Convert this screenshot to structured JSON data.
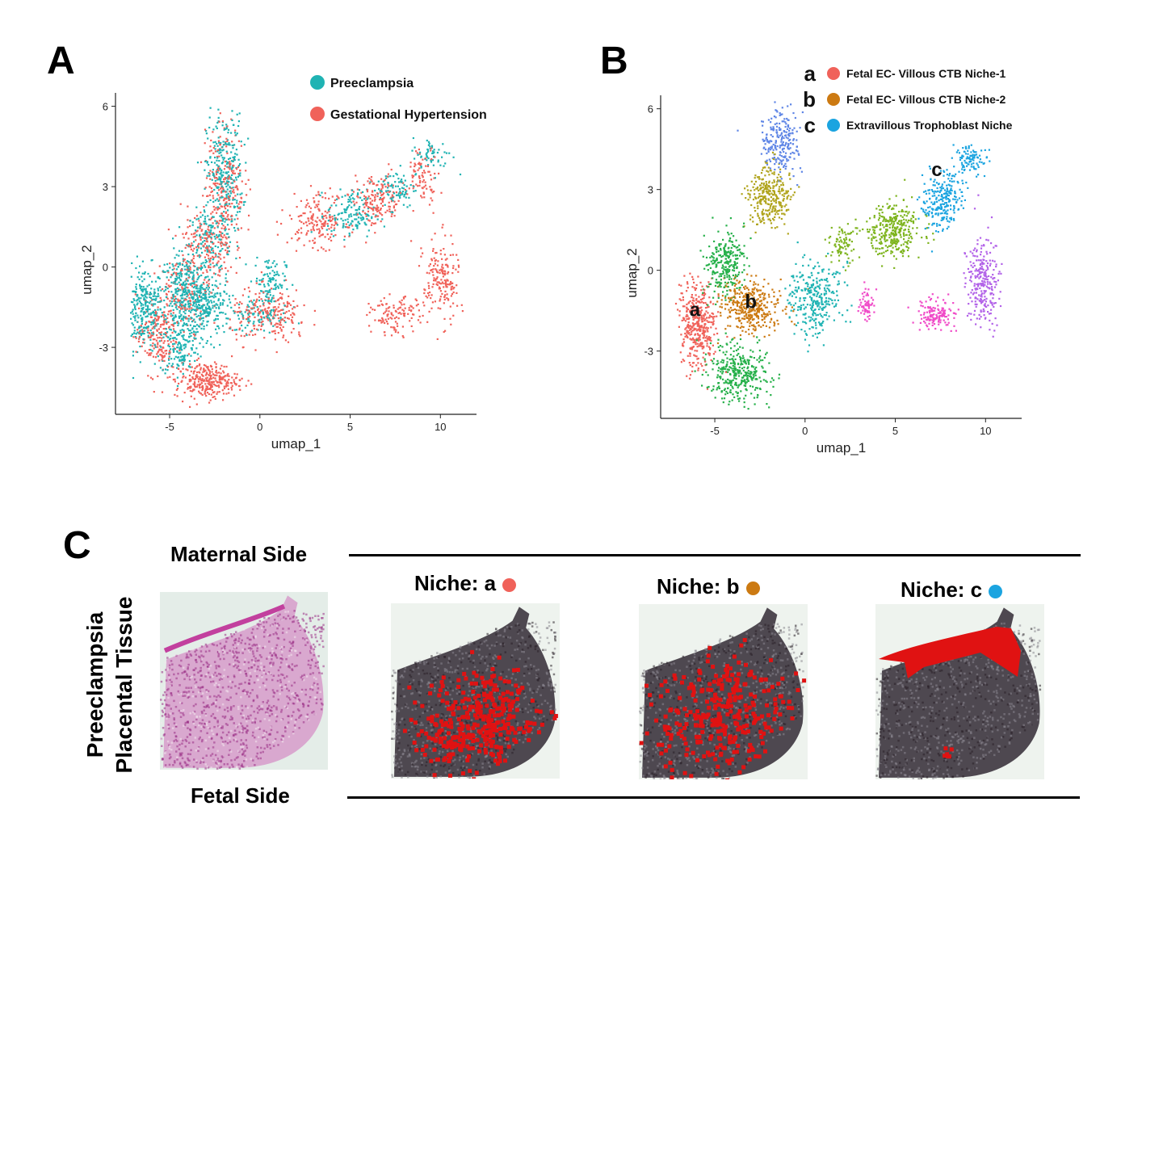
{
  "panels": {
    "a": {
      "letter": "A"
    },
    "b": {
      "letter": "B"
    },
    "c": {
      "letter": "C"
    }
  },
  "chart_data": [
    {
      "type": "scatter",
      "panel": "A",
      "xlabel": "umap_1",
      "ylabel": "umap_2",
      "xlim": [
        -8,
        12
      ],
      "ylim": [
        -5.5,
        6.5
      ],
      "xticks": [
        -5,
        0,
        5,
        10
      ],
      "xtick_labels": [
        "-5",
        "0",
        "5",
        "10"
      ],
      "yticks": [
        -3,
        0,
        3,
        6
      ],
      "ytick_labels": [
        "-3",
        "0",
        "3",
        "6"
      ],
      "grid": false,
      "legend_position": "top-right",
      "series": [
        {
          "name": "Preeclampsia",
          "color": "#1fb3b3",
          "regions": [
            [
              -6.5,
              -1.5,
              1.0,
              1.4
            ],
            [
              -4.2,
              -1.0,
              1.3,
              1.4
            ],
            [
              -4.5,
              -3.0,
              1.0,
              0.9
            ],
            [
              -2.0,
              3.5,
              0.9,
              2.0
            ],
            [
              -2.8,
              1.0,
              1.0,
              1.1
            ],
            [
              -3.0,
              -1.5,
              1.2,
              1.0
            ],
            [
              0.5,
              -0.5,
              0.8,
              0.9
            ],
            [
              5.0,
              2.0,
              1.2,
              0.8
            ],
            [
              7.5,
              3.0,
              1.0,
              0.7
            ],
            [
              9.5,
              4.2,
              1.0,
              0.6
            ],
            [
              0.0,
              -1.8,
              1.4,
              0.6
            ]
          ],
          "weights": [
            140,
            170,
            70,
            140,
            70,
            110,
            55,
            70,
            40,
            30,
            40
          ]
        },
        {
          "name": "Gestational Hypertension",
          "color": "#f0625a",
          "regions": [
            [
              -3.0,
              -4.2,
              1.6,
              0.6
            ],
            [
              -5.8,
              -2.5,
              1.0,
              1.3
            ],
            [
              -2.0,
              3.2,
              1.0,
              1.9
            ],
            [
              -3.0,
              0.8,
              1.3,
              1.3
            ],
            [
              0.5,
              -1.8,
              2.0,
              0.9
            ],
            [
              3.2,
              1.8,
              1.5,
              0.9
            ],
            [
              6.5,
              2.5,
              1.3,
              0.9
            ],
            [
              10.0,
              -0.5,
              0.9,
              1.4
            ],
            [
              7.5,
              -1.8,
              1.3,
              0.6
            ],
            [
              9.0,
              3.5,
              0.8,
              0.9
            ],
            [
              -4.2,
              -1.0,
              1.4,
              1.2
            ]
          ],
          "weights": [
            150,
            90,
            110,
            90,
            110,
            90,
            80,
            90,
            60,
            40,
            70
          ]
        }
      ]
    },
    {
      "type": "scatter",
      "panel": "B",
      "xlabel": "umap_1",
      "ylabel": "umap_2",
      "xlim": [
        -8,
        12
      ],
      "ylim": [
        -5.5,
        6.5
      ],
      "xticks": [
        -5,
        0,
        5,
        10
      ],
      "xtick_labels": [
        "-5",
        "0",
        "5",
        "10"
      ],
      "yticks": [
        -3,
        0,
        3,
        6
      ],
      "ytick_labels": [
        "-3",
        "0",
        "3",
        "6"
      ],
      "grid": false,
      "legend_position": "top-right",
      "legend": [
        {
          "letter": "a",
          "name": "Fetal EC- Villous CTB Niche-1",
          "color": "#f0625a"
        },
        {
          "letter": "b",
          "name": "Fetal EC- Villous CTB Niche-2",
          "color": "#cc7a12"
        },
        {
          "letter": "c",
          "name": "Extravillous Trophoblast Niche",
          "color": "#1ba4e0"
        }
      ],
      "cluster_labels": [
        {
          "text": "a",
          "x": -6.1,
          "y": -1.7
        },
        {
          "text": "b",
          "x": -3.0,
          "y": -1.4
        },
        {
          "text": "c",
          "x": 7.3,
          "y": 3.5
        }
      ],
      "series": [
        {
          "color": "#f0625a",
          "regions": [
            [
              -6.0,
              -2.0,
              0.9,
              1.4
            ]
          ],
          "weights": [
            200
          ]
        },
        {
          "color": "#cc7a12",
          "regions": [
            [
              -3.0,
              -1.3,
              1.5,
              0.9
            ]
          ],
          "weights": [
            180
          ]
        },
        {
          "color": "#26b04a",
          "regions": [
            [
              -3.8,
              -3.8,
              1.5,
              0.9
            ],
            [
              -4.5,
              0.3,
              1.0,
              1.1
            ]
          ],
          "weights": [
            180,
            130
          ]
        },
        {
          "color": "#b0a41c",
          "regions": [
            [
              -2.0,
              2.8,
              1.1,
              1.0
            ]
          ],
          "weights": [
            150
          ]
        },
        {
          "color": "#5f86e6",
          "regions": [
            [
              -1.4,
              4.8,
              0.9,
              1.0
            ]
          ],
          "weights": [
            110
          ]
        },
        {
          "color": "#1fb3b3",
          "regions": [
            [
              0.5,
              -1.0,
              1.3,
              1.2
            ]
          ],
          "weights": [
            150
          ]
        },
        {
          "color": "#7fb520",
          "regions": [
            [
              4.8,
              1.5,
              1.4,
              0.9
            ],
            [
              2.0,
              1.0,
              0.6,
              0.7
            ]
          ],
          "weights": [
            170,
            40
          ]
        },
        {
          "color": "#1ba4e0",
          "regions": [
            [
              7.6,
              2.6,
              1.0,
              1.0
            ],
            [
              9.0,
              4.2,
              0.9,
              0.5
            ]
          ],
          "weights": [
            120,
            50
          ]
        },
        {
          "color": "#b262e8",
          "regions": [
            [
              9.8,
              -0.3,
              0.8,
              1.5
            ]
          ],
          "weights": [
            130
          ]
        },
        {
          "color": "#f04bc8",
          "regions": [
            [
              7.2,
              -1.6,
              1.0,
              0.5
            ],
            [
              3.4,
              -1.2,
              0.4,
              0.5
            ]
          ],
          "weights": [
            70,
            30
          ]
        }
      ]
    }
  ],
  "panel_c": {
    "maternal_side": "Maternal Side",
    "fetal_side": "Fetal Side",
    "row_label_line1": "Preeclampsia",
    "row_label_line2": "Placental Tissue",
    "niches": [
      {
        "title": "Niche: a",
        "color": "#f0625a"
      },
      {
        "title": "Niche: b",
        "color": "#cc7a12"
      },
      {
        "title": "Niche: c",
        "color": "#1ba4e0"
      }
    ]
  }
}
